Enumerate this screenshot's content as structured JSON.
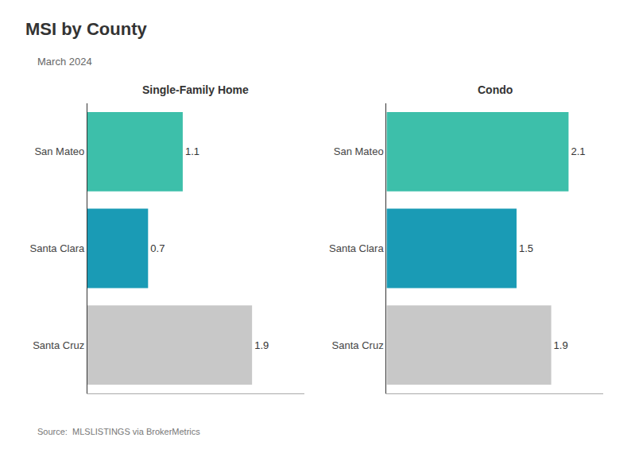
{
  "title": "MSI by County",
  "subtitle": "March 2024",
  "annotations": [
    "Source:  MLSLISTINGS via BrokerMetrics"
  ],
  "chart_data": [
    {
      "type": "bar",
      "orientation": "horizontal",
      "title": "Single-Family Home",
      "categories": [
        "San Mateo",
        "Santa Clara",
        "Santa Cruz"
      ],
      "values": [
        1.1,
        0.7,
        1.9
      ],
      "colors": [
        "#3dbfaa",
        "#1a9bb5",
        "#c8c8c8"
      ],
      "xlim": [
        0,
        2.5
      ],
      "xticks": [],
      "tick_labels": "y",
      "data_labels": true,
      "grid": false
    },
    {
      "type": "bar",
      "orientation": "horizontal",
      "title": "Condo",
      "categories": [
        "San Mateo",
        "Santa Clara",
        "Santa Cruz"
      ],
      "values": [
        2.1,
        1.5,
        1.9
      ],
      "colors": [
        "#3dbfaa",
        "#1a9bb5",
        "#c8c8c8"
      ],
      "xlim": [
        0,
        2.5
      ],
      "xticks": [],
      "tick_labels": "y",
      "data_labels": true,
      "grid": false
    }
  ]
}
